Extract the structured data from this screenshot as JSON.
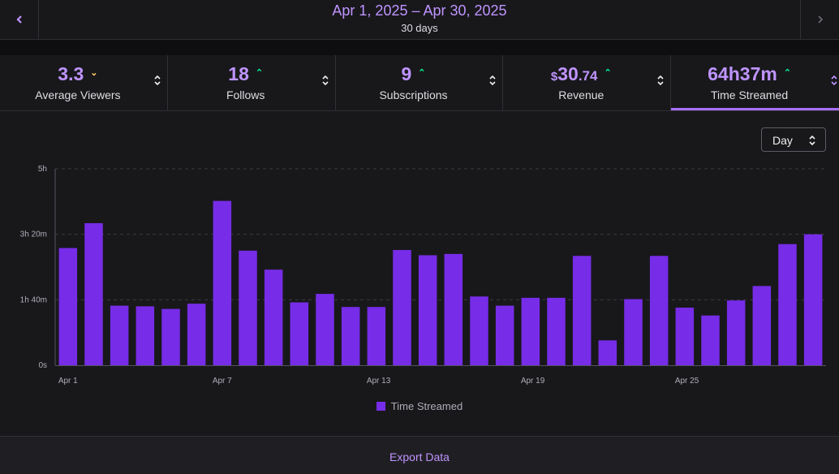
{
  "header": {
    "date_range": "Apr 1, 2025 – Apr 30, 2025",
    "duration": "30 days",
    "prev_icon": "chevron-left-icon",
    "next_icon": "chevron-right-icon"
  },
  "stats": [
    {
      "value": "3.3",
      "label": "Average Viewers",
      "trend": "down",
      "active": false
    },
    {
      "value": "18",
      "label": "Follows",
      "trend": "up",
      "active": false
    },
    {
      "value": "9",
      "label": "Subscriptions",
      "trend": "up",
      "active": false
    },
    {
      "currency": "$",
      "whole": "30",
      "cents": ".74",
      "label": "Revenue",
      "trend": "up",
      "active": false
    },
    {
      "value": "64h37m",
      "label": "Time Streamed",
      "trend": "up",
      "active": true
    }
  ],
  "period_select": {
    "value": "Day"
  },
  "colors": {
    "accent": "#bf94ff",
    "bar": "#772ce8",
    "trend_up": "#00f593",
    "trend_down": "#ffca5f"
  },
  "chart_data": {
    "type": "bar",
    "unit": "minutes",
    "ylim": [
      0,
      300
    ],
    "yticks": [
      {
        "value": 0,
        "label": "0s"
      },
      {
        "value": 100,
        "label": "1h 40m"
      },
      {
        "value": 200,
        "label": "3h 20m"
      },
      {
        "value": 300,
        "label": "5h"
      }
    ],
    "xtick_labels": [
      "Apr 1",
      "Apr 7",
      "Apr 13",
      "Apr 19",
      "Apr 25"
    ],
    "xtick_days": [
      1,
      7,
      13,
      19,
      25
    ],
    "categories": [
      "Apr 1",
      "Apr 2",
      "Apr 3",
      "Apr 4",
      "Apr 5",
      "Apr 6",
      "Apr 7",
      "Apr 8",
      "Apr 9",
      "Apr 10",
      "Apr 11",
      "Apr 12",
      "Apr 13",
      "Apr 14",
      "Apr 15",
      "Apr 16",
      "Apr 17",
      "Apr 18",
      "Apr 19",
      "Apr 20",
      "Apr 21",
      "Apr 22",
      "Apr 23",
      "Apr 24",
      "Apr 25",
      "Apr 26",
      "Apr 27",
      "Apr 28",
      "Apr 29",
      "Apr 30"
    ],
    "series": [
      {
        "name": "Time Streamed",
        "values": [
          179,
          217,
          91,
          90,
          86,
          94,
          251,
          175,
          146,
          96,
          109,
          89,
          89,
          176,
          168,
          170,
          105,
          91,
          103,
          103,
          167,
          38,
          101,
          167,
          88,
          76,
          99,
          121,
          185,
          200
        ]
      }
    ],
    "grid": true,
    "legend": "bottom-center"
  },
  "footer": {
    "export_label": "Export Data"
  }
}
